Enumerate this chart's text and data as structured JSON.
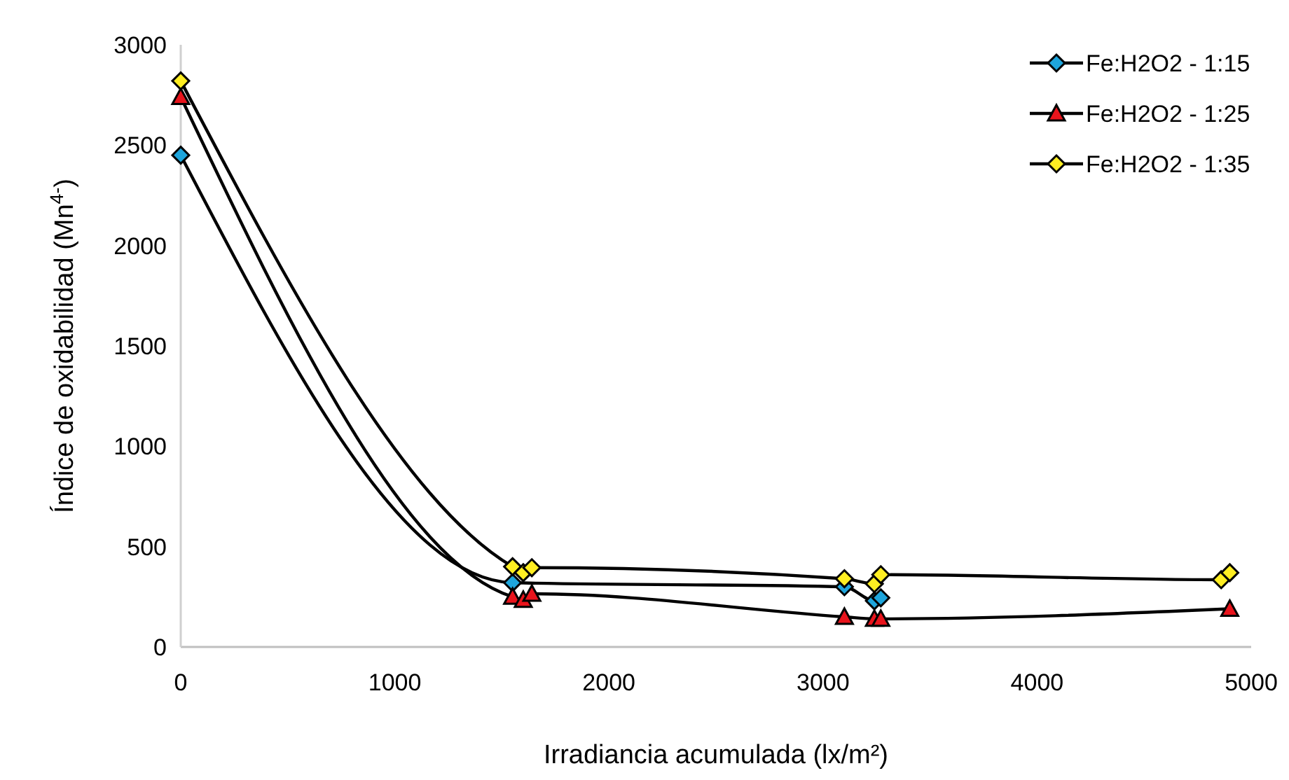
{
  "chart_data": {
    "type": "line",
    "xlabel": "Irradiancia acumulada (lx/m²)",
    "ylabel": "Índice de oxidabilidad (Mn$^{4-}$)",
    "xlim": [
      0,
      5000
    ],
    "xticks": [
      0,
      1000,
      2000,
      3000,
      4000,
      5000
    ],
    "ylim": [
      0,
      3000
    ],
    "yticks": [
      0,
      500,
      1000,
      1500,
      2000,
      2500,
      3000
    ],
    "grid": false,
    "legend": "top right",
    "series": [
      {
        "name": "Fe:H2O2 - 1:15",
        "color": "#1ea5dc",
        "marker": "diamond",
        "x": [
          0,
          1550,
          1600,
          1640,
          3100,
          3240,
          3270
        ],
        "values": [
          2450,
          320,
          null,
          null,
          300,
          230,
          245
        ]
      },
      {
        "name": "Fe:H2O2 - 1:25",
        "color": "#e8141c",
        "marker": "triangle",
        "x": [
          0,
          1550,
          1600,
          1640,
          3100,
          3240,
          3270,
          4880,
          4900
        ],
        "values": [
          2740,
          250,
          235,
          265,
          150,
          140,
          140,
          null,
          190
        ]
      },
      {
        "name": "Fe:H2O2 - 1:35",
        "color": "#ffee22",
        "marker": "diamond",
        "x": [
          0,
          1550,
          1600,
          1640,
          3100,
          3240,
          3270,
          4860,
          4880,
          4900
        ],
        "values": [
          2820,
          400,
          370,
          395,
          340,
          315,
          360,
          335,
          null,
          370
        ]
      }
    ]
  }
}
